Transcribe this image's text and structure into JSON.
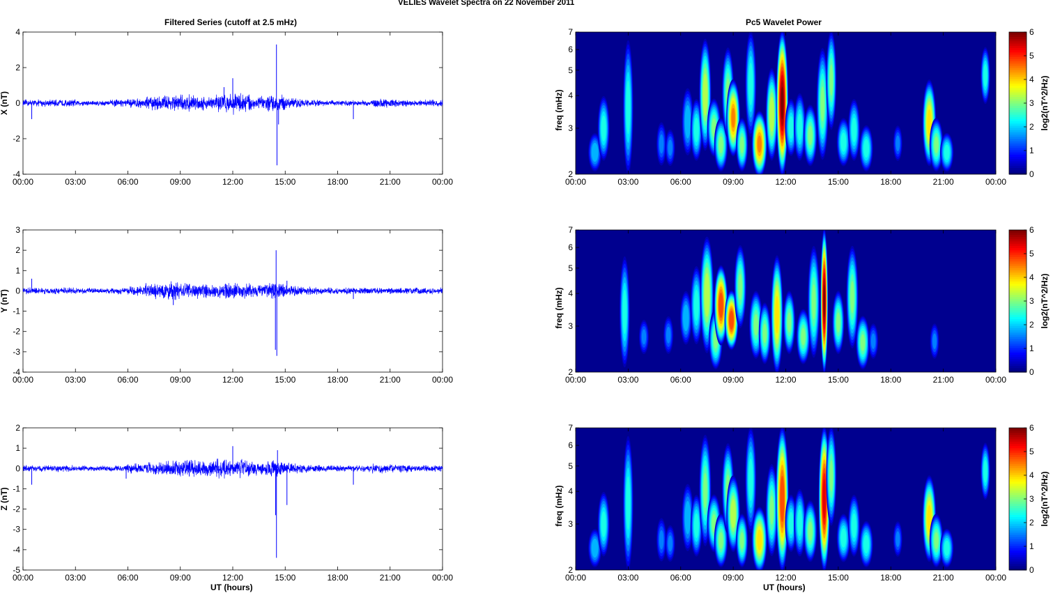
{
  "figure_title": "VELIES Wavelet Spectra on 22 November  2011",
  "left_title": "Filtered Series (cutoff at 2.5 mHz)",
  "right_title": "Pc5 Wavelet Power",
  "xlabel": "UT (hours)",
  "colors": {
    "line": "#0000ff",
    "background": "#ffffff",
    "spectrum_floor": "#00008f"
  },
  "chart_data": [
    {
      "type": "line",
      "title": "Filtered Series (cutoff at 2.5 mHz)",
      "ylabel": "X (nT)",
      "xlabel": "",
      "xlim": [
        0,
        24
      ],
      "ylim": [
        -4,
        4
      ],
      "yticks": [
        -4,
        -2,
        0,
        2,
        4
      ],
      "xticks": [
        0,
        3,
        6,
        9,
        12,
        15,
        18,
        21,
        24
      ],
      "xticklabels": [
        "00:00",
        "03:00",
        "06:00",
        "09:00",
        "12:00",
        "15:00",
        "18:00",
        "21:00",
        "00:00"
      ],
      "noise_envelope_nT_hourly": [
        0.15,
        0.15,
        0.15,
        0.12,
        0.12,
        0.15,
        0.2,
        0.3,
        0.35,
        0.35,
        0.3,
        0.4,
        0.45,
        0.3,
        0.35,
        0.2,
        0.15,
        0.12,
        0.12,
        0.12,
        0.2,
        0.15,
        0.12,
        0.15
      ],
      "spikes": [
        [
          14.5,
          3.3
        ],
        [
          14.53,
          -3.5
        ],
        [
          12.0,
          1.4
        ],
        [
          14.62,
          -1.2
        ],
        [
          0.5,
          -0.9
        ],
        [
          18.9,
          -0.9
        ],
        [
          11.5,
          0.9
        ]
      ]
    },
    {
      "type": "line",
      "ylabel": "Y (nT)",
      "xlabel": "",
      "xlim": [
        0,
        24
      ],
      "ylim": [
        -4,
        3
      ],
      "yticks": [
        -4,
        -3,
        -2,
        -1,
        0,
        1,
        2,
        3
      ],
      "xticks": [
        0,
        3,
        6,
        9,
        12,
        15,
        18,
        21,
        24
      ],
      "xticklabels": [
        "00:00",
        "03:00",
        "06:00",
        "09:00",
        "12:00",
        "15:00",
        "18:00",
        "21:00",
        "00:00"
      ],
      "noise_envelope_nT_hourly": [
        0.12,
        0.12,
        0.12,
        0.1,
        0.1,
        0.12,
        0.18,
        0.3,
        0.35,
        0.3,
        0.25,
        0.3,
        0.3,
        0.25,
        0.3,
        0.2,
        0.15,
        0.12,
        0.12,
        0.12,
        0.12,
        0.12,
        0.12,
        0.12
      ],
      "spikes": [
        [
          14.48,
          2.0
        ],
        [
          14.44,
          -2.9
        ],
        [
          14.52,
          -3.2
        ],
        [
          8.6,
          -0.7
        ],
        [
          18.9,
          -0.4
        ],
        [
          0.5,
          0.6
        ],
        [
          15.1,
          0.5
        ]
      ]
    },
    {
      "type": "line",
      "ylabel": "Z (nT)",
      "xlabel": "UT (hours)",
      "xlim": [
        0,
        24
      ],
      "ylim": [
        -5,
        2
      ],
      "yticks": [
        -5,
        -4,
        -3,
        -2,
        -1,
        0,
        1,
        2
      ],
      "xticks": [
        0,
        3,
        6,
        9,
        12,
        15,
        18,
        21,
        24
      ],
      "xticklabels": [
        "00:00",
        "03:00",
        "06:00",
        "09:00",
        "12:00",
        "15:00",
        "18:00",
        "21:00",
        "00:00"
      ],
      "noise_envelope_nT_hourly": [
        0.12,
        0.12,
        0.12,
        0.1,
        0.1,
        0.12,
        0.18,
        0.25,
        0.3,
        0.3,
        0.3,
        0.35,
        0.35,
        0.25,
        0.3,
        0.2,
        0.15,
        0.12,
        0.12,
        0.12,
        0.18,
        0.15,
        0.12,
        0.12
      ],
      "spikes": [
        [
          14.5,
          -4.4
        ],
        [
          14.45,
          -2.3
        ],
        [
          12.0,
          1.1
        ],
        [
          15.1,
          -1.8
        ],
        [
          14.56,
          0.9
        ],
        [
          18.9,
          -0.8
        ],
        [
          0.5,
          -0.8
        ],
        [
          5.9,
          -0.5
        ]
      ]
    },
    {
      "type": "heatmap",
      "title": "Pc5 Wavelet Power",
      "ylabel": "freq (mHz)",
      "colorbar_label": "log2(nT^2/Hz)",
      "xlim": [
        0,
        24
      ],
      "ylim": [
        2,
        7
      ],
      "yscale": "log",
      "yticks": [
        2,
        3,
        4,
        5,
        6,
        7
      ],
      "clim": [
        0,
        6
      ],
      "cticks": [
        0,
        1,
        2,
        3,
        4,
        5,
        6
      ],
      "xticks": [
        0,
        3,
        6,
        9,
        12,
        15,
        18,
        21,
        24
      ],
      "xticklabels": [
        "00:00",
        "03:00",
        "06:00",
        "09:00",
        "12:00",
        "15:00",
        "18:00",
        "21:00",
        "00:00"
      ],
      "blobs_time_fmin_fmax_width_power": [
        [
          1.1,
          2.1,
          2.8,
          0.5,
          2
        ],
        [
          1.6,
          2.3,
          3.9,
          0.4,
          2.5
        ],
        [
          3.0,
          2.0,
          6.5,
          0.3,
          2.5
        ],
        [
          4.9,
          2.2,
          3.1,
          0.3,
          1.5
        ],
        [
          5.4,
          2.2,
          2.9,
          0.3,
          1.5
        ],
        [
          6.4,
          2.4,
          4.2,
          0.4,
          2
        ],
        [
          6.9,
          2.3,
          3.8,
          0.4,
          2.5
        ],
        [
          7.4,
          2.5,
          6.5,
          0.4,
          3.5
        ],
        [
          7.9,
          2.4,
          3.8,
          0.5,
          3
        ],
        [
          8.3,
          2.1,
          3.2,
          0.5,
          3
        ],
        [
          8.7,
          2.8,
          6.0,
          0.4,
          3
        ],
        [
          9.0,
          2.4,
          4.5,
          0.5,
          4.5
        ],
        [
          9.5,
          2.1,
          3.2,
          0.4,
          3
        ],
        [
          10.0,
          2.8,
          7.0,
          0.35,
          2.5
        ],
        [
          10.5,
          2.0,
          3.4,
          0.6,
          4.5
        ],
        [
          11.2,
          2.3,
          5.0,
          0.4,
          3.5
        ],
        [
          11.8,
          2.0,
          7.0,
          0.4,
          6
        ],
        [
          12.3,
          2.4,
          3.8,
          0.4,
          2.5
        ],
        [
          12.8,
          2.3,
          4.0,
          0.4,
          2.5
        ],
        [
          13.4,
          2.2,
          3.6,
          0.5,
          3
        ],
        [
          14.1,
          2.3,
          6.0,
          0.4,
          3
        ],
        [
          14.6,
          3.0,
          7.0,
          0.3,
          3
        ],
        [
          15.3,
          2.2,
          3.2,
          0.5,
          2.5
        ],
        [
          15.9,
          2.3,
          3.8,
          0.4,
          2.5
        ],
        [
          16.6,
          2.1,
          3.0,
          0.5,
          2.5
        ],
        [
          18.4,
          2.3,
          3.0,
          0.25,
          1.5
        ],
        [
          20.2,
          2.2,
          4.5,
          0.5,
          4
        ],
        [
          20.6,
          2.1,
          3.2,
          0.5,
          3
        ],
        [
          21.2,
          2.1,
          2.8,
          0.5,
          2.5
        ],
        [
          23.4,
          3.8,
          6.0,
          0.25,
          2.5
        ]
      ]
    },
    {
      "type": "heatmap",
      "ylabel": "freq (mHz)",
      "colorbar_label": "log2(nT^2/Hz)",
      "xlim": [
        0,
        24
      ],
      "ylim": [
        2,
        7
      ],
      "yscale": "log",
      "yticks": [
        2,
        3,
        4,
        5,
        6,
        7
      ],
      "clim": [
        0,
        6
      ],
      "cticks": [
        0,
        1,
        2,
        3,
        4,
        5,
        6
      ],
      "xticks": [
        0,
        3,
        6,
        9,
        12,
        15,
        18,
        21,
        24
      ],
      "xticklabels": [
        "00:00",
        "03:00",
        "06:00",
        "09:00",
        "12:00",
        "15:00",
        "18:00",
        "21:00",
        "00:00"
      ],
      "blobs_time_fmin_fmax_width_power": [
        [
          2.8,
          2.1,
          5.5,
          0.3,
          2.5
        ],
        [
          3.9,
          2.4,
          3.1,
          0.3,
          1.5
        ],
        [
          5.3,
          2.4,
          3.2,
          0.3,
          1.5
        ],
        [
          6.3,
          2.6,
          4.0,
          0.4,
          2
        ],
        [
          6.9,
          2.6,
          5.0,
          0.4,
          2.5
        ],
        [
          7.5,
          2.4,
          6.5,
          0.5,
          3.5
        ],
        [
          8.0,
          2.1,
          3.4,
          0.5,
          3
        ],
        [
          8.3,
          2.6,
          5.0,
          0.5,
          5
        ],
        [
          8.9,
          2.5,
          4.0,
          0.5,
          5
        ],
        [
          9.4,
          3.0,
          6.0,
          0.4,
          3
        ],
        [
          10.3,
          2.3,
          4.0,
          0.5,
          3
        ],
        [
          10.8,
          2.2,
          3.6,
          0.4,
          3
        ],
        [
          11.5,
          2.0,
          5.5,
          0.4,
          4
        ],
        [
          12.2,
          2.4,
          4.0,
          0.4,
          3
        ],
        [
          13.0,
          2.2,
          3.4,
          0.5,
          3
        ],
        [
          13.6,
          2.3,
          6.0,
          0.4,
          3
        ],
        [
          14.2,
          2.0,
          7.0,
          0.12,
          6
        ],
        [
          15.0,
          2.4,
          4.0,
          0.4,
          3
        ],
        [
          15.8,
          2.5,
          6.0,
          0.4,
          3
        ],
        [
          16.4,
          2.1,
          3.2,
          0.5,
          3
        ],
        [
          17.0,
          2.3,
          3.0,
          0.3,
          1.5
        ],
        [
          20.5,
          2.3,
          3.0,
          0.25,
          1.5
        ]
      ]
    },
    {
      "type": "heatmap",
      "ylabel": "freq (mHz)",
      "xlabel": "UT (hours)",
      "colorbar_label": "log2(nT^2/Hz)",
      "xlim": [
        0,
        24
      ],
      "ylim": [
        2,
        7
      ],
      "yscale": "log",
      "yticks": [
        2,
        3,
        4,
        5,
        6,
        7
      ],
      "clim": [
        0,
        6
      ],
      "cticks": [
        0,
        1,
        2,
        3,
        4,
        5,
        6
      ],
      "xticks": [
        0,
        3,
        6,
        9,
        12,
        15,
        18,
        21,
        24
      ],
      "xticklabels": [
        "00:00",
        "03:00",
        "06:00",
        "09:00",
        "12:00",
        "15:00",
        "18:00",
        "21:00",
        "00:00"
      ],
      "blobs_time_fmin_fmax_width_power": [
        [
          1.1,
          2.1,
          2.8,
          0.5,
          2
        ],
        [
          1.6,
          2.3,
          3.9,
          0.4,
          2.5
        ],
        [
          3.0,
          2.0,
          6.5,
          0.3,
          2.5
        ],
        [
          4.9,
          2.2,
          3.1,
          0.3,
          1.5
        ],
        [
          5.4,
          2.2,
          2.9,
          0.3,
          1.5
        ],
        [
          6.4,
          2.4,
          4.2,
          0.4,
          2
        ],
        [
          6.9,
          2.3,
          3.8,
          0.4,
          2.5
        ],
        [
          7.4,
          2.5,
          6.5,
          0.4,
          3
        ],
        [
          7.9,
          2.4,
          3.8,
          0.5,
          3
        ],
        [
          8.3,
          2.1,
          3.2,
          0.5,
          3
        ],
        [
          8.7,
          2.8,
          6.0,
          0.4,
          3
        ],
        [
          9.0,
          2.4,
          4.5,
          0.5,
          3.5
        ],
        [
          9.5,
          2.1,
          3.2,
          0.4,
          3
        ],
        [
          10.0,
          2.8,
          7.0,
          0.35,
          2.5
        ],
        [
          10.5,
          2.0,
          3.4,
          0.6,
          4
        ],
        [
          11.2,
          2.3,
          5.0,
          0.4,
          3
        ],
        [
          11.8,
          2.0,
          7.0,
          0.45,
          5
        ],
        [
          12.3,
          2.4,
          3.8,
          0.4,
          2.5
        ],
        [
          12.8,
          2.3,
          4.0,
          0.4,
          2.5
        ],
        [
          13.4,
          2.2,
          3.6,
          0.5,
          3
        ],
        [
          14.2,
          2.0,
          7.0,
          0.35,
          5.5
        ],
        [
          14.6,
          3.0,
          7.0,
          0.3,
          3
        ],
        [
          15.3,
          2.2,
          3.2,
          0.5,
          2.5
        ],
        [
          15.9,
          2.3,
          3.8,
          0.4,
          2.5
        ],
        [
          16.6,
          2.1,
          3.0,
          0.5,
          2.5
        ],
        [
          18.4,
          2.3,
          3.0,
          0.25,
          1.5
        ],
        [
          20.2,
          2.2,
          4.5,
          0.5,
          4
        ],
        [
          20.6,
          2.1,
          3.2,
          0.5,
          3
        ],
        [
          21.2,
          2.1,
          2.8,
          0.5,
          2.5
        ],
        [
          23.4,
          3.8,
          6.0,
          0.25,
          2.5
        ]
      ]
    }
  ]
}
